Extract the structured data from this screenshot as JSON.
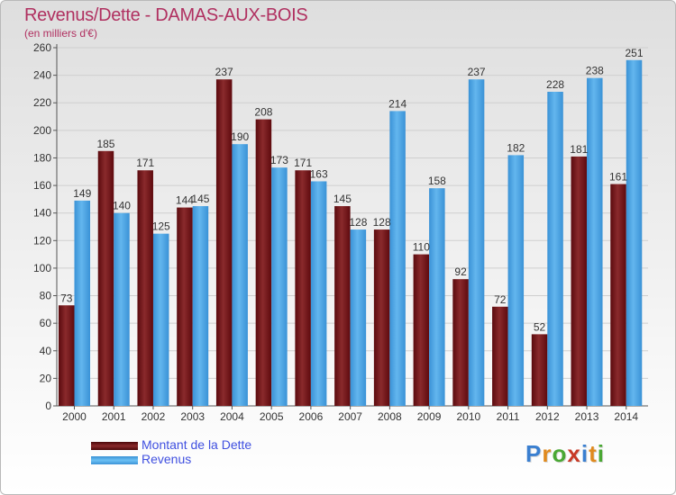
{
  "header": {
    "title": "Revenus/Dette - DAMAS-AUX-BOIS",
    "subtitle": "(en milliers d'€)"
  },
  "legend": {
    "items": [
      {
        "label": "Montant de la Dette",
        "color": "#6e0e12"
      },
      {
        "label": "Revenus",
        "color": "#4aa5e5"
      }
    ]
  },
  "logo": {
    "letters": [
      "P",
      "r",
      "o",
      "x",
      "i",
      "t",
      "i"
    ],
    "colors": [
      "#3a7fd0",
      "#e08a1e",
      "#4aa834",
      "#c83a26",
      "#3a7fd0",
      "#e08a1e",
      "#4aa834"
    ]
  },
  "chart_data": {
    "type": "bar",
    "categories": [
      "2000",
      "2001",
      "2002",
      "2003",
      "2004",
      "2005",
      "2006",
      "2007",
      "2008",
      "2009",
      "2010",
      "2011",
      "2012",
      "2013",
      "2014"
    ],
    "series": [
      {
        "name": "Montant de la Dette",
        "values": [
          73,
          185,
          171,
          144,
          237,
          208,
          171,
          145,
          128,
          110,
          92,
          72,
          52,
          181,
          161
        ],
        "color": "#6e0e12"
      },
      {
        "name": "Revenus",
        "values": [
          149,
          140,
          125,
          145,
          190,
          173,
          163,
          128,
          214,
          158,
          237,
          182,
          228,
          238,
          251
        ],
        "color": "#4aa5e5"
      }
    ],
    "ylim": [
      0,
      260
    ],
    "yticks": [
      0,
      20,
      40,
      60,
      80,
      100,
      120,
      140,
      160,
      180,
      200,
      220,
      240,
      260
    ],
    "grid": true,
    "legend_position": "bottom-left"
  }
}
